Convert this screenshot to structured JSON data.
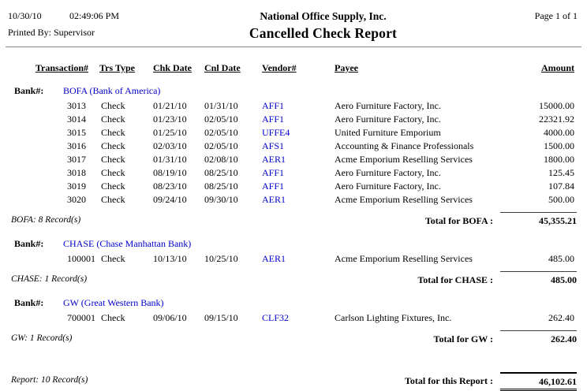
{
  "header": {
    "date": "10/30/10",
    "time": "02:49:06 PM",
    "printed_by": "Printed By: Supervisor",
    "company": "National Office Supply, Inc.",
    "report_title": "Cancelled Check Report",
    "page_info": "Page 1 of 1"
  },
  "table": {
    "bank_label": "Bank#:",
    "columns": [
      "Transaction#",
      "Trs Type",
      "Chk Date",
      "Cnl Date",
      "Vendor#",
      "Payee",
      "Amount"
    ]
  },
  "banks": [
    {
      "name": "BOFA (Bank of America)",
      "rows": [
        {
          "transaction": "3013",
          "trs_type": "Check",
          "chk_date": "01/21/10",
          "cnl_date": "01/31/10",
          "vendor": "AFF1",
          "payee": "Aero Furniture Factory, Inc.",
          "amount": "15000.00"
        },
        {
          "transaction": "3014",
          "trs_type": "Check",
          "chk_date": "01/23/10",
          "cnl_date": "02/05/10",
          "vendor": "AFF1",
          "payee": "Aero Furniture Factory, Inc.",
          "amount": "22321.92"
        },
        {
          "transaction": "3015",
          "trs_type": "Check",
          "chk_date": "01/25/10",
          "cnl_date": "02/05/10",
          "vendor": "UFFE4",
          "payee": "United Furniture Emporium",
          "amount": "4000.00"
        },
        {
          "transaction": "3016",
          "trs_type": "Check",
          "chk_date": "02/03/10",
          "cnl_date": "02/05/10",
          "vendor": "AFS1",
          "payee": "Accounting & Finance Professionals",
          "amount": "1500.00"
        },
        {
          "transaction": "3017",
          "trs_type": "Check",
          "chk_date": "01/31/10",
          "cnl_date": "02/08/10",
          "vendor": "AER1",
          "payee": "Acme Emporium Reselling Services",
          "amount": "1800.00"
        },
        {
          "transaction": "3018",
          "trs_type": "Check",
          "chk_date": "08/19/10",
          "cnl_date": "08/25/10",
          "vendor": "AFF1",
          "payee": "Aero Furniture Factory, Inc.",
          "amount": "125.45"
        },
        {
          "transaction": "3019",
          "trs_type": "Check",
          "chk_date": "08/23/10",
          "cnl_date": "08/25/10",
          "vendor": "AFF1",
          "payee": "Aero Furniture Factory, Inc.",
          "amount": "107.84"
        },
        {
          "transaction": "3020",
          "trs_type": "Check",
          "chk_date": "09/24/10",
          "cnl_date": "09/30/10",
          "vendor": "AER1",
          "payee": "Acme Emporium Reselling Services",
          "amount": "500.00"
        }
      ],
      "record_count": "BOFA: 8 Record(s)",
      "total_label": "Total for BOFA :",
      "total_amount": "45,355.21"
    },
    {
      "name": "CHASE (Chase Manhattan Bank)",
      "rows": [
        {
          "transaction": "100001",
          "trs_type": "Check",
          "chk_date": "10/13/10",
          "cnl_date": "10/25/10",
          "vendor": "AER1",
          "payee": "Acme Emporium Reselling Services",
          "amount": "485.00"
        }
      ],
      "record_count": "CHASE: 1 Record(s)",
      "total_label": "Total for CHASE :",
      "total_amount": "485.00"
    },
    {
      "name": "GW (Great Western Bank)",
      "rows": [
        {
          "transaction": "700001",
          "trs_type": "Check",
          "chk_date": "09/06/10",
          "cnl_date": "09/15/10",
          "vendor": "CLF32",
          "payee": "Carlson Lighting Fixtures, Inc.",
          "amount": "262.40"
        }
      ],
      "record_count": "GW: 1 Record(s)",
      "total_label": "Total for GW :",
      "total_amount": "262.40"
    }
  ],
  "report_footer": {
    "record_count": "Report: 10 Record(s)",
    "total_label": "Total for this Report :",
    "total_amount": "46,102.61"
  },
  "colors": {
    "link_blue": "#0000CC",
    "header_rule": "#8c8c8c",
    "total_rule": "#404040"
  }
}
